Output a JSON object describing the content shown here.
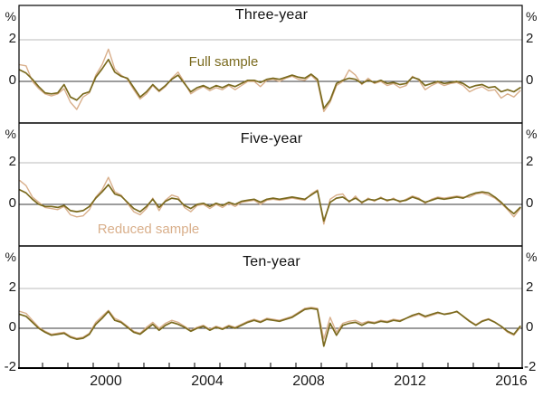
{
  "style": {
    "full_color": "#7A6A1E",
    "reduced_color": "#D9AF8B",
    "grid_color": "#BBBBBB",
    "zero_color": "#3A3A3A",
    "axis_color": "#000000",
    "text_color": "#1A1A1A"
  },
  "axis": {
    "y_labels": {
      "percent": "%",
      "two": "2",
      "zero": "0",
      "minus_two": "-2"
    },
    "x_labels": [
      "2000",
      "2004",
      "2008",
      "2012",
      "2016"
    ],
    "tick_year_start": 1998,
    "tick_year_end": 2016
  },
  "legend": {
    "full": "Full sample",
    "reduced": "Reduced sample"
  },
  "chart_data": [
    {
      "type": "line",
      "title": "Three-year",
      "xlabel": "",
      "ylabel": "%",
      "xlim": [
        1997.07,
        2016.93
      ],
      "ylim": [
        -2,
        4
      ],
      "yticks": [
        -2,
        0,
        2
      ],
      "gridline_at": 2,
      "x_start": 1997.1,
      "x_step": 0.25,
      "series": [
        {
          "name": "Full sample",
          "color": "#7A6A1E",
          "width": 1.7,
          "values": [
            0.55,
            0.4,
            0.1,
            -0.25,
            -0.55,
            -0.6,
            -0.55,
            -0.15,
            -0.75,
            -0.9,
            -0.6,
            -0.5,
            0.2,
            0.6,
            1.05,
            0.45,
            0.25,
            0.15,
            -0.3,
            -0.75,
            -0.5,
            -0.15,
            -0.45,
            -0.2,
            0.1,
            0.3,
            -0.1,
            -0.5,
            -0.3,
            -0.2,
            -0.35,
            -0.2,
            -0.3,
            -0.15,
            -0.25,
            -0.1,
            0.05,
            0.05,
            -0.05,
            0.1,
            0.15,
            0.1,
            0.2,
            0.3,
            0.2,
            0.15,
            0.35,
            0.1,
            -1.3,
            -0.9,
            -0.1,
            0.05,
            0.15,
            0.1,
            -0.1,
            0.05,
            -0.05,
            0.05,
            -0.1,
            -0.05,
            -0.15,
            -0.1,
            0.2,
            0.1,
            -0.2,
            -0.1,
            0.0,
            -0.1,
            -0.05,
            0.0,
            -0.1,
            -0.3,
            -0.2,
            -0.15,
            -0.3,
            -0.25,
            -0.5,
            -0.4,
            -0.5,
            -0.3
          ]
        },
        {
          "name": "Reduced sample",
          "color": "#D9AF8B",
          "width": 1.4,
          "values": [
            0.8,
            0.75,
            0.0,
            -0.35,
            -0.6,
            -0.7,
            -0.6,
            -0.35,
            -1.0,
            -1.35,
            -0.75,
            -0.55,
            0.3,
            0.8,
            1.55,
            0.6,
            0.3,
            0.1,
            -0.4,
            -0.85,
            -0.6,
            -0.2,
            -0.5,
            -0.25,
            0.15,
            0.45,
            -0.05,
            -0.6,
            -0.4,
            -0.25,
            -0.45,
            -0.3,
            -0.4,
            -0.2,
            -0.4,
            -0.2,
            0.0,
            0.0,
            -0.25,
            0.05,
            0.1,
            0.0,
            0.15,
            0.25,
            0.1,
            0.05,
            0.3,
            0.0,
            -1.45,
            -1.0,
            -0.2,
            0.0,
            0.55,
            0.3,
            -0.15,
            0.15,
            -0.1,
            0.0,
            -0.2,
            -0.1,
            -0.3,
            -0.2,
            0.25,
            0.05,
            -0.4,
            -0.2,
            -0.05,
            -0.2,
            -0.1,
            -0.05,
            -0.2,
            -0.5,
            -0.35,
            -0.25,
            -0.45,
            -0.4,
            -0.8,
            -0.6,
            -0.75,
            -0.45
          ]
        }
      ]
    },
    {
      "type": "line",
      "title": "Five-year",
      "xlabel": "",
      "ylabel": "%",
      "xlim": [
        1997.07,
        2016.93
      ],
      "ylim": [
        -2,
        4
      ],
      "yticks": [
        -2,
        0,
        2
      ],
      "gridline_at": 2,
      "x_start": 1997.1,
      "x_step": 0.25,
      "series": [
        {
          "name": "Full sample",
          "color": "#7A6A1E",
          "width": 1.7,
          "values": [
            0.7,
            0.55,
            0.25,
            0.0,
            -0.1,
            -0.1,
            -0.15,
            -0.05,
            -0.3,
            -0.35,
            -0.3,
            -0.1,
            0.3,
            0.6,
            0.95,
            0.5,
            0.4,
            0.1,
            -0.2,
            -0.35,
            -0.1,
            0.25,
            -0.15,
            0.15,
            0.3,
            0.25,
            -0.05,
            -0.2,
            0.0,
            0.05,
            -0.1,
            0.05,
            -0.05,
            0.1,
            0.0,
            0.15,
            0.2,
            0.25,
            0.1,
            0.25,
            0.3,
            0.25,
            0.3,
            0.35,
            0.3,
            0.25,
            0.45,
            0.65,
            -0.8,
            0.1,
            0.3,
            0.35,
            0.15,
            0.3,
            0.1,
            0.25,
            0.2,
            0.3,
            0.2,
            0.25,
            0.15,
            0.2,
            0.35,
            0.25,
            0.1,
            0.2,
            0.3,
            0.25,
            0.3,
            0.35,
            0.3,
            0.45,
            0.55,
            0.6,
            0.55,
            0.35,
            0.1,
            -0.2,
            -0.45,
            -0.15
          ]
        },
        {
          "name": "Reduced sample",
          "color": "#D9AF8B",
          "width": 1.4,
          "values": [
            1.15,
            0.9,
            0.35,
            0.1,
            -0.15,
            -0.2,
            -0.25,
            -0.1,
            -0.5,
            -0.6,
            -0.55,
            -0.25,
            0.35,
            0.7,
            1.3,
            0.6,
            0.45,
            0.05,
            -0.35,
            -0.5,
            -0.2,
            0.3,
            -0.3,
            0.2,
            0.45,
            0.35,
            -0.15,
            -0.35,
            -0.05,
            0.0,
            -0.2,
            0.0,
            -0.15,
            0.05,
            -0.1,
            0.1,
            0.15,
            0.2,
            0.0,
            0.2,
            0.25,
            0.2,
            0.25,
            0.3,
            0.25,
            0.2,
            0.5,
            0.7,
            -0.95,
            0.25,
            0.45,
            0.5,
            0.1,
            0.4,
            0.05,
            0.3,
            0.15,
            0.35,
            0.15,
            0.3,
            0.1,
            0.25,
            0.4,
            0.3,
            0.05,
            0.25,
            0.35,
            0.3,
            0.35,
            0.4,
            0.35,
            0.35,
            0.5,
            0.55,
            0.45,
            0.3,
            0.05,
            -0.25,
            -0.6,
            -0.2
          ]
        }
      ]
    },
    {
      "type": "line",
      "title": "Ten-year",
      "xlabel": "",
      "ylabel": "%",
      "xlim": [
        1997.07,
        2016.93
      ],
      "ylim": [
        -2,
        4
      ],
      "yticks": [
        -2,
        0,
        2
      ],
      "gridline_at": 2,
      "x_start": 1997.1,
      "x_step": 0.25,
      "series": [
        {
          "name": "Full sample",
          "color": "#7A6A1E",
          "width": 1.7,
          "values": [
            0.7,
            0.6,
            0.3,
            0.0,
            -0.2,
            -0.35,
            -0.3,
            -0.25,
            -0.45,
            -0.55,
            -0.5,
            -0.3,
            0.2,
            0.5,
            0.85,
            0.4,
            0.3,
            0.05,
            -0.2,
            -0.3,
            -0.05,
            0.2,
            -0.1,
            0.15,
            0.3,
            0.2,
            0.05,
            -0.15,
            0.0,
            0.1,
            -0.1,
            0.05,
            -0.05,
            0.1,
            0.0,
            0.15,
            0.3,
            0.4,
            0.3,
            0.45,
            0.4,
            0.35,
            0.45,
            0.55,
            0.75,
            0.95,
            1.0,
            0.95,
            -0.9,
            0.25,
            -0.35,
            0.15,
            0.25,
            0.3,
            0.15,
            0.3,
            0.25,
            0.35,
            0.3,
            0.4,
            0.35,
            0.5,
            0.65,
            0.75,
            0.6,
            0.7,
            0.8,
            0.7,
            0.75,
            0.85,
            0.6,
            0.35,
            0.15,
            0.35,
            0.45,
            0.3,
            0.1,
            -0.15,
            -0.3,
            0.1
          ]
        },
        {
          "name": "Reduced sample",
          "color": "#D9AF8B",
          "width": 1.4,
          "values": [
            0.85,
            0.75,
            0.4,
            0.05,
            -0.15,
            -0.3,
            -0.25,
            -0.2,
            -0.4,
            -0.5,
            -0.45,
            -0.25,
            0.3,
            0.6,
            0.9,
            0.5,
            0.35,
            0.1,
            -0.15,
            -0.25,
            0.05,
            0.3,
            0.0,
            0.25,
            0.4,
            0.3,
            0.1,
            -0.1,
            0.05,
            0.15,
            -0.05,
            0.1,
            0.0,
            0.15,
            0.05,
            0.2,
            0.35,
            0.45,
            0.35,
            0.5,
            0.45,
            0.4,
            0.5,
            0.6,
            0.8,
            1.0,
            1.05,
            1.0,
            -0.55,
            0.55,
            -0.2,
            0.25,
            0.35,
            0.4,
            0.25,
            0.35,
            0.3,
            0.4,
            0.35,
            0.45,
            0.4,
            0.5,
            0.6,
            0.7,
            0.55,
            0.65,
            0.75,
            0.72,
            0.78,
            0.82,
            0.62,
            0.38,
            0.18,
            0.38,
            0.48,
            0.32,
            0.08,
            -0.2,
            -0.35,
            0.05
          ]
        }
      ]
    }
  ]
}
